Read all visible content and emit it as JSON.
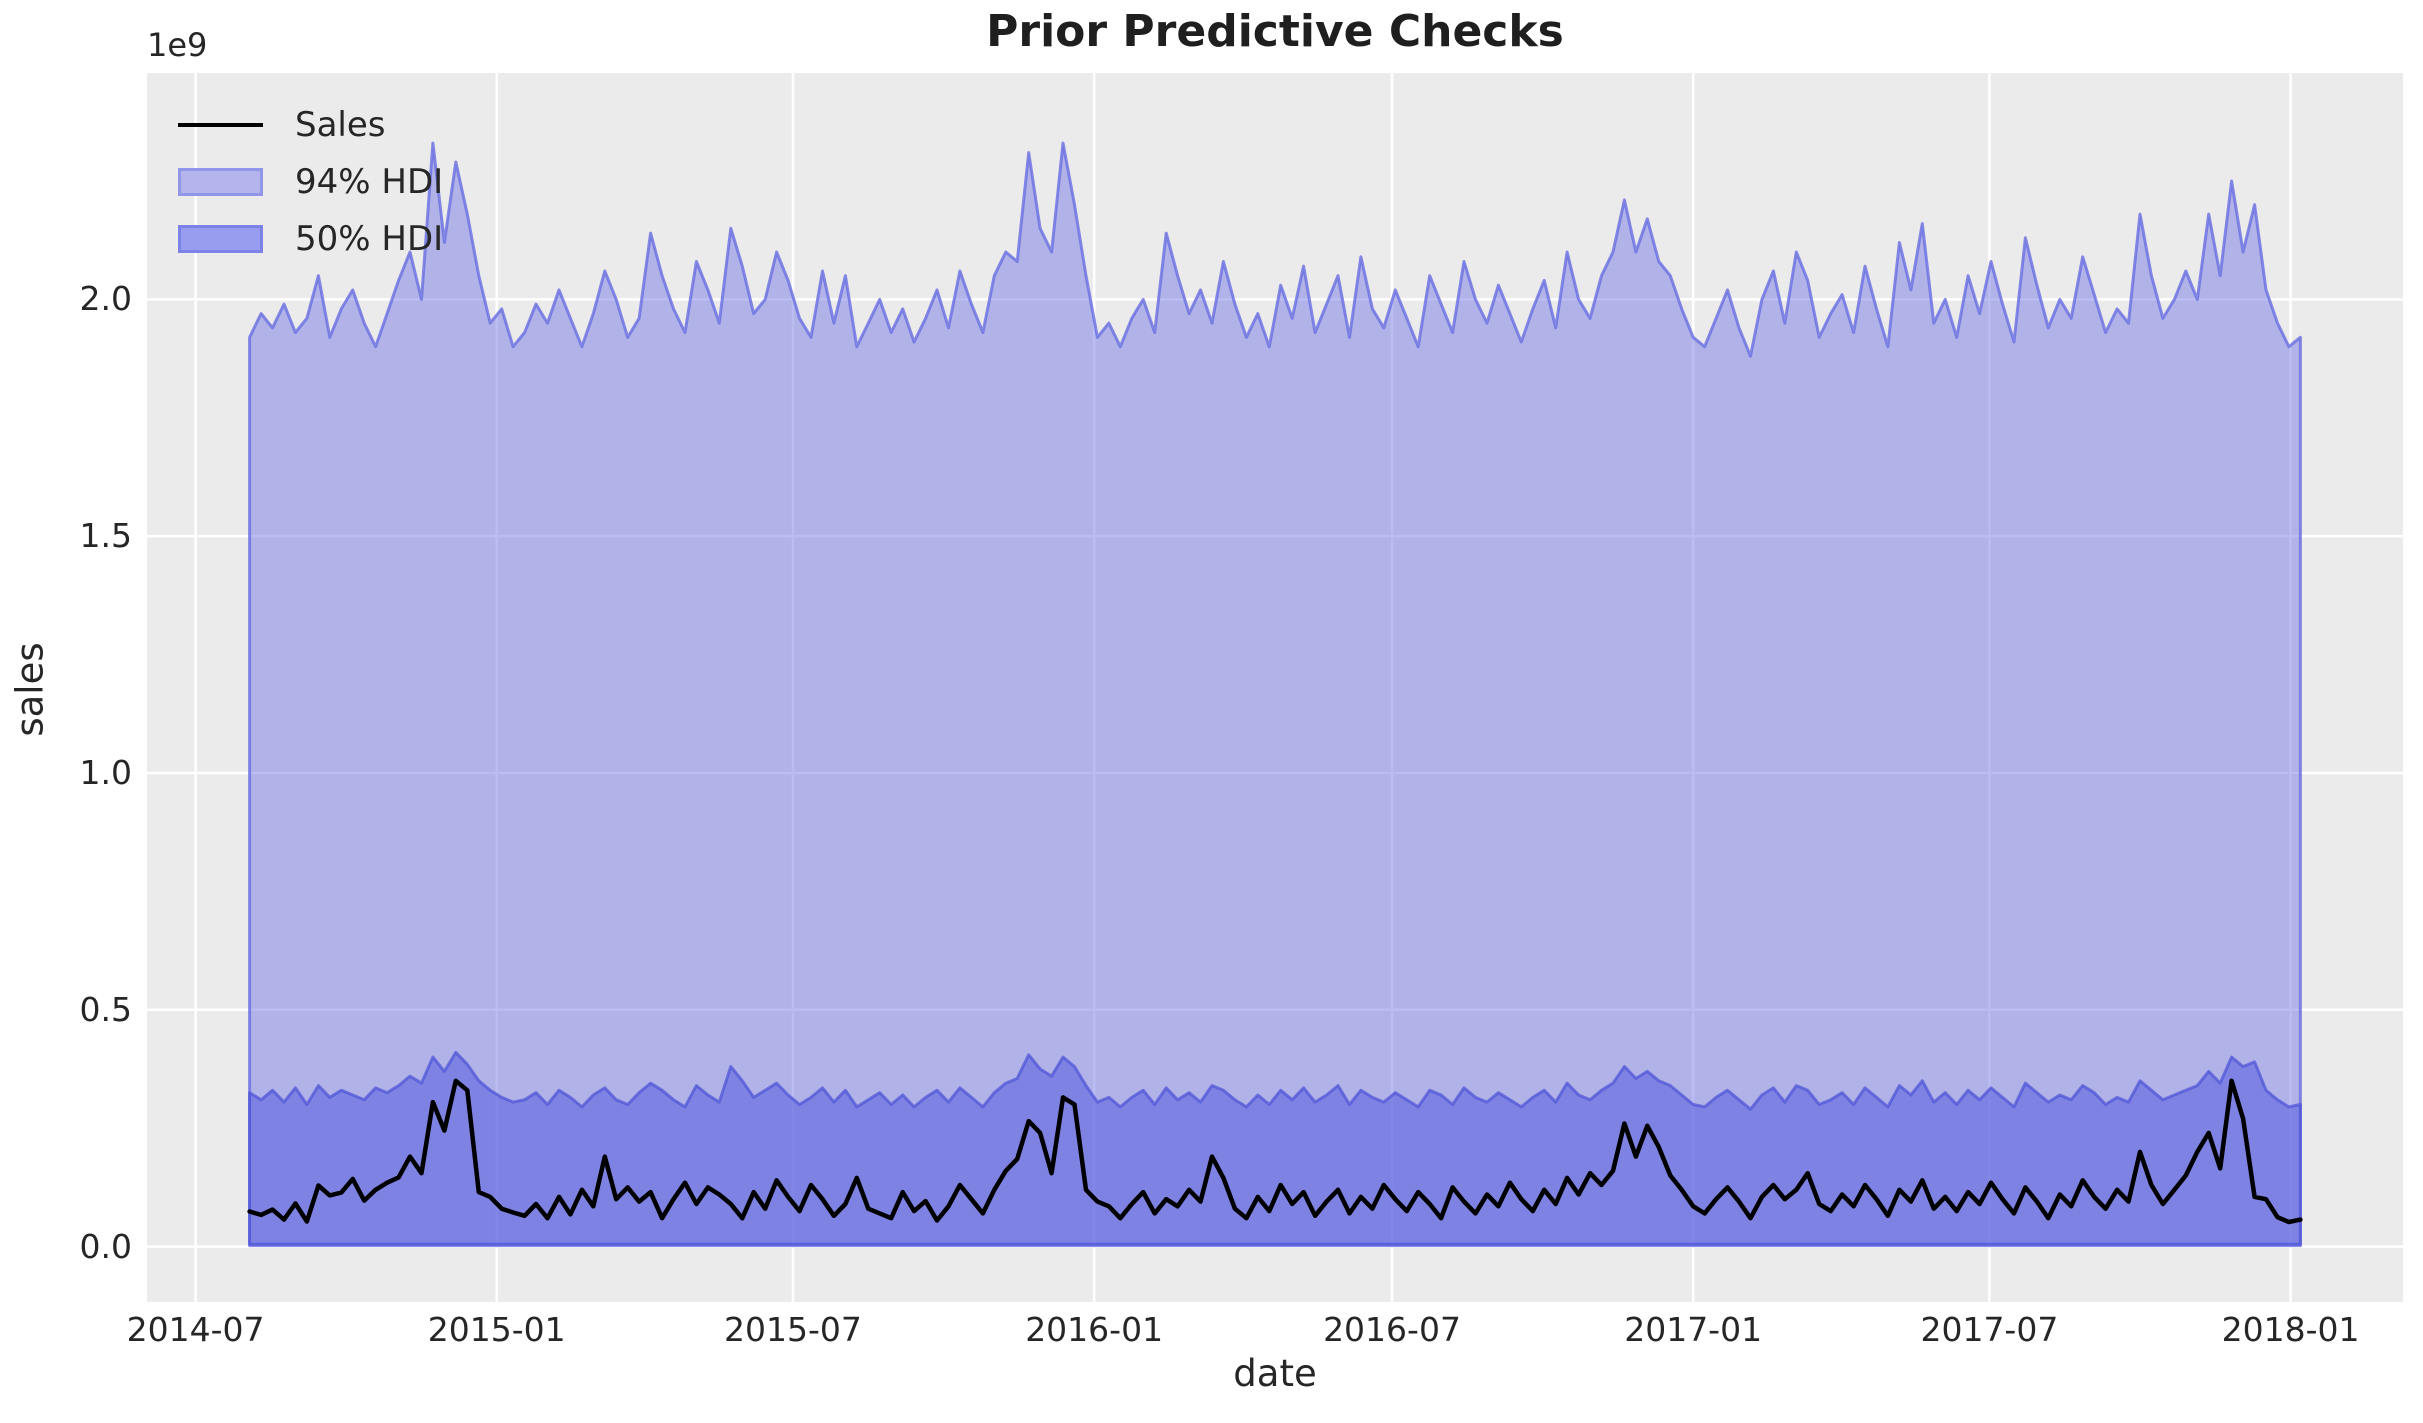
{
  "figure": {
    "title": "Prior Predictive Checks",
    "xlabel": "date",
    "ylabel": "sales",
    "offset_label": "1e9"
  },
  "legend": {
    "position": "upper left",
    "items": [
      {
        "label": "Sales",
        "type": "line"
      },
      {
        "label": "94% HDI",
        "type": "patch"
      },
      {
        "label": "50% HDI",
        "type": "patch"
      }
    ]
  },
  "chart_data": {
    "type": "line",
    "title": "Prior Predictive Checks",
    "xlabel": "date",
    "ylabel": "sales",
    "y_offset_multiplier": "1e9",
    "grid": true,
    "legend_position": "upper left",
    "x_axis": {
      "start_date": "2014-08-03",
      "frequency": "weekly",
      "n_points": 180,
      "start_day": 33,
      "step_days": 7,
      "xlim": [
        -29.7,
        1348.7
      ],
      "ticks": [
        {
          "label": "2014-07",
          "day": 0
        },
        {
          "label": "2015-01",
          "day": 184
        },
        {
          "label": "2015-07",
          "day": 365
        },
        {
          "label": "2016-01",
          "day": 549
        },
        {
          "label": "2016-07",
          "day": 731
        },
        {
          "label": "2017-01",
          "day": 915
        },
        {
          "label": "2017-07",
          "day": 1096
        },
        {
          "label": "2018-01",
          "day": 1280
        }
      ]
    },
    "y_axis": {
      "ylim": [
        -0.117,
        2.478
      ],
      "ticks": [
        {
          "label": "0.0",
          "value": 0.0
        },
        {
          "label": "0.5",
          "value": 0.5
        },
        {
          "label": "1.0",
          "value": 1.0
        },
        {
          "label": "1.5",
          "value": 1.5
        },
        {
          "label": "2.0",
          "value": 2.0
        }
      ]
    },
    "colors": {
      "figure_background": "#ffffff",
      "axes_background": "#ebebeb",
      "grid": "#ffffff",
      "text": "#262626",
      "sales_line": "#000000",
      "hdi94_fill": "rgba(117,121,229,0.50)",
      "hdi94_edge": "rgba(105,110,225,0.80)",
      "hdi50_fill": "rgba(96,102,224,0.62)",
      "hdi50_edge": "rgba(80,86,215,0.75)",
      "legend94_fill": "#b3b5ec",
      "legend94_edge": "#9296e8",
      "legend50_fill": "#999df0",
      "legend50_edge": "#7d82e8"
    },
    "series": [
      {
        "name": "Sales",
        "type": "line",
        "color": "#000000",
        "values_1e9": [
          0.074,
          0.067,
          0.078,
          0.057,
          0.091,
          0.053,
          0.129,
          0.108,
          0.114,
          0.143,
          0.097,
          0.12,
          0.135,
          0.146,
          0.19,
          0.155,
          0.305,
          0.245,
          0.35,
          0.33,
          0.115,
          0.105,
          0.08,
          0.072,
          0.065,
          0.09,
          0.06,
          0.105,
          0.068,
          0.12,
          0.085,
          0.19,
          0.1,
          0.125,
          0.095,
          0.115,
          0.06,
          0.1,
          0.135,
          0.09,
          0.125,
          0.11,
          0.09,
          0.06,
          0.115,
          0.08,
          0.14,
          0.105,
          0.075,
          0.13,
          0.1,
          0.065,
          0.09,
          0.145,
          0.08,
          0.07,
          0.06,
          0.115,
          0.075,
          0.096,
          0.055,
          0.085,
          0.13,
          0.1,
          0.07,
          0.12,
          0.16,
          0.185,
          0.265,
          0.24,
          0.155,
          0.315,
          0.3,
          0.12,
          0.095,
          0.085,
          0.06,
          0.09,
          0.115,
          0.07,
          0.1,
          0.085,
          0.12,
          0.095,
          0.19,
          0.145,
          0.08,
          0.06,
          0.105,
          0.075,
          0.13,
          0.09,
          0.115,
          0.065,
          0.095,
          0.12,
          0.07,
          0.105,
          0.08,
          0.13,
          0.1,
          0.075,
          0.115,
          0.09,
          0.06,
          0.125,
          0.095,
          0.07,
          0.11,
          0.085,
          0.135,
          0.1,
          0.075,
          0.12,
          0.09,
          0.145,
          0.11,
          0.155,
          0.13,
          0.16,
          0.26,
          0.19,
          0.255,
          0.21,
          0.15,
          0.12,
          0.085,
          0.07,
          0.1,
          0.125,
          0.095,
          0.06,
          0.105,
          0.13,
          0.1,
          0.12,
          0.155,
          0.09,
          0.075,
          0.11,
          0.085,
          0.13,
          0.1,
          0.065,
          0.12,
          0.095,
          0.14,
          0.08,
          0.105,
          0.075,
          0.115,
          0.09,
          0.135,
          0.1,
          0.07,
          0.125,
          0.095,
          0.06,
          0.11,
          0.085,
          0.14,
          0.105,
          0.08,
          0.12,
          0.095,
          0.2,
          0.13,
          0.09,
          0.12,
          0.15,
          0.2,
          0.24,
          0.165,
          0.35,
          0.27,
          0.105,
          0.1,
          0.062,
          0.052,
          0.057
        ]
      },
      {
        "name": "94% HDI",
        "type": "band",
        "lower_1e9": 0.002,
        "upper_1e9": [
          1.92,
          1.97,
          1.94,
          1.99,
          1.93,
          1.96,
          2.05,
          1.92,
          1.98,
          2.02,
          1.95,
          1.9,
          1.97,
          2.04,
          2.1,
          2.0,
          2.33,
          2.12,
          2.29,
          2.18,
          2.05,
          1.95,
          1.98,
          1.9,
          1.93,
          1.99,
          1.95,
          2.02,
          1.96,
          1.9,
          1.97,
          2.06,
          2.0,
          1.92,
          1.96,
          2.14,
          2.05,
          1.98,
          1.93,
          2.08,
          2.02,
          1.95,
          2.15,
          2.07,
          1.97,
          2.0,
          2.1,
          2.04,
          1.96,
          1.92,
          2.06,
          1.95,
          2.05,
          1.9,
          1.95,
          2.0,
          1.93,
          1.98,
          1.91,
          1.96,
          2.02,
          1.94,
          2.06,
          1.99,
          1.93,
          2.05,
          2.1,
          2.08,
          2.31,
          2.15,
          2.1,
          2.33,
          2.2,
          2.05,
          1.92,
          1.95,
          1.9,
          1.96,
          2.0,
          1.93,
          2.14,
          2.05,
          1.97,
          2.02,
          1.95,
          2.08,
          1.99,
          1.92,
          1.97,
          1.9,
          2.03,
          1.96,
          2.07,
          1.93,
          1.99,
          2.05,
          1.92,
          2.09,
          1.98,
          1.94,
          2.02,
          1.96,
          1.9,
          2.05,
          1.99,
          1.93,
          2.08,
          2.0,
          1.95,
          2.03,
          1.97,
          1.91,
          1.98,
          2.04,
          1.94,
          2.1,
          2.0,
          1.96,
          2.05,
          2.1,
          2.21,
          2.1,
          2.17,
          2.08,
          2.05,
          1.98,
          1.92,
          1.9,
          1.96,
          2.02,
          1.94,
          1.88,
          2.0,
          2.06,
          1.95,
          2.1,
          2.04,
          1.92,
          1.97,
          2.01,
          1.93,
          2.07,
          1.98,
          1.9,
          2.12,
          2.02,
          2.16,
          1.95,
          2.0,
          1.92,
          2.05,
          1.97,
          2.08,
          1.99,
          1.91,
          2.13,
          2.03,
          1.94,
          2.0,
          1.96,
          2.09,
          2.01,
          1.93,
          1.98,
          1.95,
          2.18,
          2.05,
          1.96,
          2.0,
          2.06,
          2.0,
          2.18,
          2.05,
          2.25,
          2.1,
          2.2,
          2.02,
          1.95,
          1.9,
          1.92
        ]
      },
      {
        "name": "50% HDI",
        "type": "band",
        "lower_1e9": 0.005,
        "upper_1e9": [
          0.325,
          0.31,
          0.33,
          0.305,
          0.335,
          0.3,
          0.34,
          0.315,
          0.33,
          0.32,
          0.31,
          0.335,
          0.325,
          0.34,
          0.36,
          0.345,
          0.4,
          0.37,
          0.41,
          0.385,
          0.35,
          0.33,
          0.315,
          0.305,
          0.31,
          0.325,
          0.3,
          0.33,
          0.315,
          0.295,
          0.32,
          0.335,
          0.31,
          0.3,
          0.325,
          0.345,
          0.33,
          0.31,
          0.295,
          0.34,
          0.32,
          0.305,
          0.38,
          0.35,
          0.315,
          0.33,
          0.345,
          0.32,
          0.3,
          0.315,
          0.335,
          0.305,
          0.33,
          0.295,
          0.31,
          0.325,
          0.3,
          0.32,
          0.295,
          0.315,
          0.33,
          0.305,
          0.335,
          0.315,
          0.295,
          0.325,
          0.345,
          0.355,
          0.405,
          0.375,
          0.36,
          0.4,
          0.38,
          0.34,
          0.305,
          0.315,
          0.295,
          0.315,
          0.33,
          0.3,
          0.335,
          0.31,
          0.325,
          0.305,
          0.34,
          0.33,
          0.31,
          0.295,
          0.32,
          0.3,
          0.33,
          0.31,
          0.335,
          0.305,
          0.32,
          0.34,
          0.3,
          0.33,
          0.315,
          0.305,
          0.325,
          0.31,
          0.295,
          0.33,
          0.32,
          0.3,
          0.335,
          0.315,
          0.305,
          0.325,
          0.31,
          0.295,
          0.315,
          0.33,
          0.305,
          0.345,
          0.32,
          0.31,
          0.33,
          0.345,
          0.38,
          0.355,
          0.37,
          0.35,
          0.34,
          0.32,
          0.3,
          0.295,
          0.315,
          0.33,
          0.31,
          0.29,
          0.32,
          0.335,
          0.305,
          0.34,
          0.33,
          0.3,
          0.31,
          0.325,
          0.3,
          0.335,
          0.315,
          0.295,
          0.34,
          0.32,
          0.35,
          0.305,
          0.325,
          0.3,
          0.33,
          0.31,
          0.335,
          0.315,
          0.295,
          0.345,
          0.325,
          0.305,
          0.32,
          0.31,
          0.34,
          0.325,
          0.3,
          0.315,
          0.305,
          0.35,
          0.33,
          0.31,
          0.32,
          0.33,
          0.34,
          0.37,
          0.345,
          0.4,
          0.38,
          0.39,
          0.33,
          0.31,
          0.295,
          0.3
        ]
      }
    ]
  }
}
